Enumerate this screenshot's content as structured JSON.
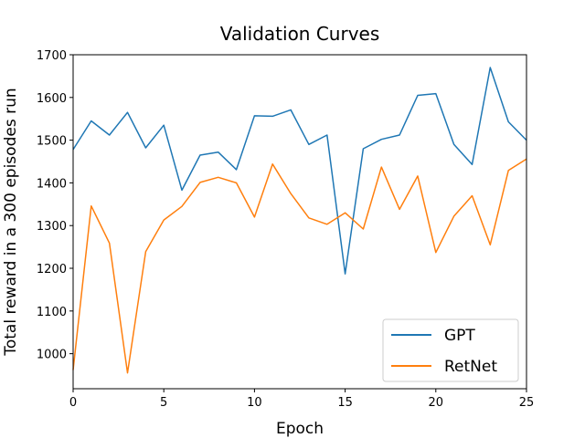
{
  "chart_data": {
    "type": "line",
    "title": "Validation Curves",
    "xlabel": "Epoch",
    "ylabel": "Total reward in a 300 episodes run",
    "xlim": [
      0,
      25
    ],
    "ylim": [
      918,
      1700
    ],
    "xticks": [
      0,
      5,
      10,
      15,
      20,
      25
    ],
    "yticks": [
      1000,
      1100,
      1200,
      1300,
      1400,
      1500,
      1600,
      1700
    ],
    "grid": false,
    "legend_position": "lower-right",
    "x": [
      0,
      1,
      2,
      3,
      4,
      5,
      6,
      7,
      8,
      9,
      10,
      11,
      12,
      13,
      14,
      15,
      16,
      17,
      18,
      19,
      20,
      21,
      22,
      23,
      24,
      25
    ],
    "series": [
      {
        "name": "GPT",
        "color": "#1f77b4",
        "values": [
          1478,
          1545,
          1512,
          1565,
          1482,
          1535,
          1383,
          1465,
          1472,
          1431,
          1557,
          1556,
          1571,
          1490,
          1512,
          1187,
          1480,
          1502,
          1512,
          1605,
          1609,
          1490,
          1443,
          1670,
          1543,
          1500
        ]
      },
      {
        "name": "RetNet",
        "color": "#ff7f0e",
        "values": [
          962,
          1346,
          1259,
          955,
          1239,
          1313,
          1345,
          1401,
          1413,
          1400,
          1320,
          1444,
          1375,
          1318,
          1303,
          1330,
          1292,
          1437,
          1338,
          1416,
          1237,
          1322,
          1370,
          1255,
          1429,
          1456
        ]
      }
    ]
  }
}
